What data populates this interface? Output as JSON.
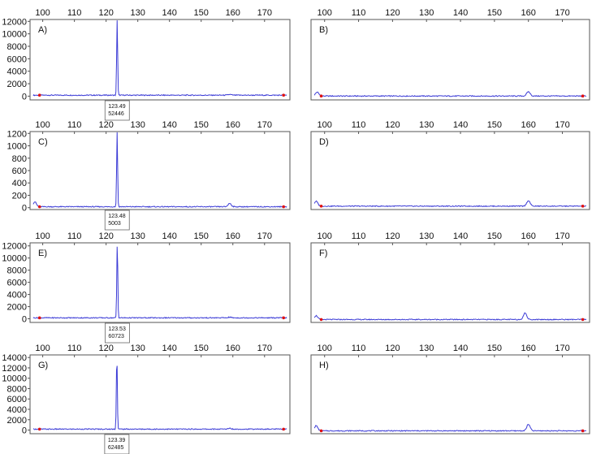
{
  "chart_data": [
    {
      "type": "line",
      "panel_label": "A)",
      "x_ticks": [
        100,
        110,
        120,
        130,
        140,
        150,
        160,
        170
      ],
      "y_ticks": [
        0,
        2000,
        4000,
        6000,
        8000,
        10000,
        12000
      ],
      "xlim": [
        96,
        178
      ],
      "ylim": [
        -600,
        12300
      ],
      "peaks": [
        {
          "x": 123.49,
          "y": 12100
        }
      ],
      "bumps": [
        {
          "x": 159,
          "y": 110
        }
      ],
      "markers": [
        {
          "x": 99,
          "y": 0
        },
        {
          "x": 176,
          "y": 0
        }
      ],
      "peak_label": {
        "x": 123.49,
        "lines": [
          "123.49",
          "52446"
        ]
      }
    },
    {
      "type": "line",
      "panel_label": "B)",
      "x_ticks": [
        100,
        110,
        120,
        130,
        140,
        150,
        160,
        170
      ],
      "y_ticks": [],
      "xlim": [
        96,
        178
      ],
      "ylim": [
        -60,
        1600
      ],
      "peaks": [],
      "bumps": [
        {
          "x": 97.8,
          "y": 80
        },
        {
          "x": 160,
          "y": 90
        }
      ],
      "markers": [
        {
          "x": 99,
          "y": 0
        },
        {
          "x": 176,
          "y": 0
        }
      ]
    },
    {
      "type": "line",
      "panel_label": "C)",
      "x_ticks": [
        100,
        110,
        120,
        130,
        140,
        150,
        160,
        170
      ],
      "y_ticks": [
        0,
        200,
        400,
        600,
        800,
        1000,
        1200
      ],
      "xlim": [
        96,
        178
      ],
      "ylim": [
        -30,
        1230
      ],
      "peaks": [
        {
          "x": 123.48,
          "y": 1200
        }
      ],
      "bumps": [
        {
          "x": 97.5,
          "y": 80
        },
        {
          "x": 159,
          "y": 55
        }
      ],
      "markers": [
        {
          "x": 99,
          "y": 0
        },
        {
          "x": 176,
          "y": 0
        }
      ],
      "peak_label": {
        "x": 123.48,
        "lines": [
          "123.48",
          "5003"
        ]
      }
    },
    {
      "type": "line",
      "panel_label": "D)",
      "x_ticks": [
        100,
        110,
        120,
        130,
        140,
        150,
        160,
        170
      ],
      "y_ticks": [],
      "xlim": [
        96,
        178
      ],
      "ylim": [
        -40,
        1230
      ],
      "peaks": [],
      "bumps": [
        {
          "x": 97.5,
          "y": 80
        },
        {
          "x": 160,
          "y": 90
        }
      ],
      "markers": [
        {
          "x": 99,
          "y": 0
        },
        {
          "x": 176,
          "y": 0
        }
      ]
    },
    {
      "type": "line",
      "panel_label": "E)",
      "x_ticks": [
        100,
        110,
        120,
        130,
        140,
        150,
        160,
        170
      ],
      "y_ticks": [
        0,
        2000,
        4000,
        6000,
        8000,
        10000,
        12000
      ],
      "xlim": [
        96,
        178
      ],
      "ylim": [
        -600,
        12500
      ],
      "peaks": [
        {
          "x": 123.53,
          "y": 12400
        }
      ],
      "bumps": [
        {
          "x": 159,
          "y": 110
        }
      ],
      "markers": [
        {
          "x": 99,
          "y": 0
        },
        {
          "x": 176,
          "y": 0
        }
      ],
      "peak_label": {
        "x": 123.53,
        "lines": [
          "123.53",
          "60723"
        ]
      }
    },
    {
      "type": "line",
      "panel_label": "F)",
      "x_ticks": [
        100,
        110,
        120,
        130,
        140,
        150,
        160,
        170
      ],
      "y_ticks": [],
      "xlim": [
        96,
        178
      ],
      "ylim": [
        -30,
        1200
      ],
      "peaks": [],
      "bumps": [
        {
          "x": 97.5,
          "y": 60
        },
        {
          "x": 159,
          "y": 100
        }
      ],
      "markers": [
        {
          "x": 99,
          "y": 0
        },
        {
          "x": 176,
          "y": 0
        }
      ]
    },
    {
      "type": "line",
      "panel_label": "G)",
      "x_ticks": [
        100,
        110,
        120,
        130,
        140,
        150,
        160,
        170
      ],
      "y_ticks": [
        0,
        2000,
        4000,
        6000,
        8000,
        10000,
        12000,
        14000
      ],
      "xlim": [
        96,
        178
      ],
      "ylim": [
        -700,
        14500
      ],
      "peaks": [
        {
          "x": 123.39,
          "y": 14300
        }
      ],
      "bumps": [
        {
          "x": 159,
          "y": 180
        }
      ],
      "markers": [
        {
          "x": 99,
          "y": 0
        },
        {
          "x": 176,
          "y": 0
        }
      ],
      "peak_label": {
        "x": 123.39,
        "lines": [
          "123.39",
          "62485"
        ]
      }
    },
    {
      "type": "line",
      "panel_label": "H)",
      "x_ticks": [
        100,
        110,
        120,
        130,
        140,
        150,
        160,
        170
      ],
      "y_ticks": [],
      "xlim": [
        96,
        178
      ],
      "ylim": [
        -30,
        1200
      ],
      "peaks": [],
      "bumps": [
        {
          "x": 97.5,
          "y": 80
        },
        {
          "x": 160,
          "y": 100
        }
      ],
      "markers": [
        {
          "x": 99,
          "y": 0
        },
        {
          "x": 176,
          "y": 0
        }
      ]
    }
  ],
  "colors": {
    "trace": "#3b3bd6",
    "marker": "#e01010",
    "axis": "#555555",
    "label_box": "#666666"
  }
}
